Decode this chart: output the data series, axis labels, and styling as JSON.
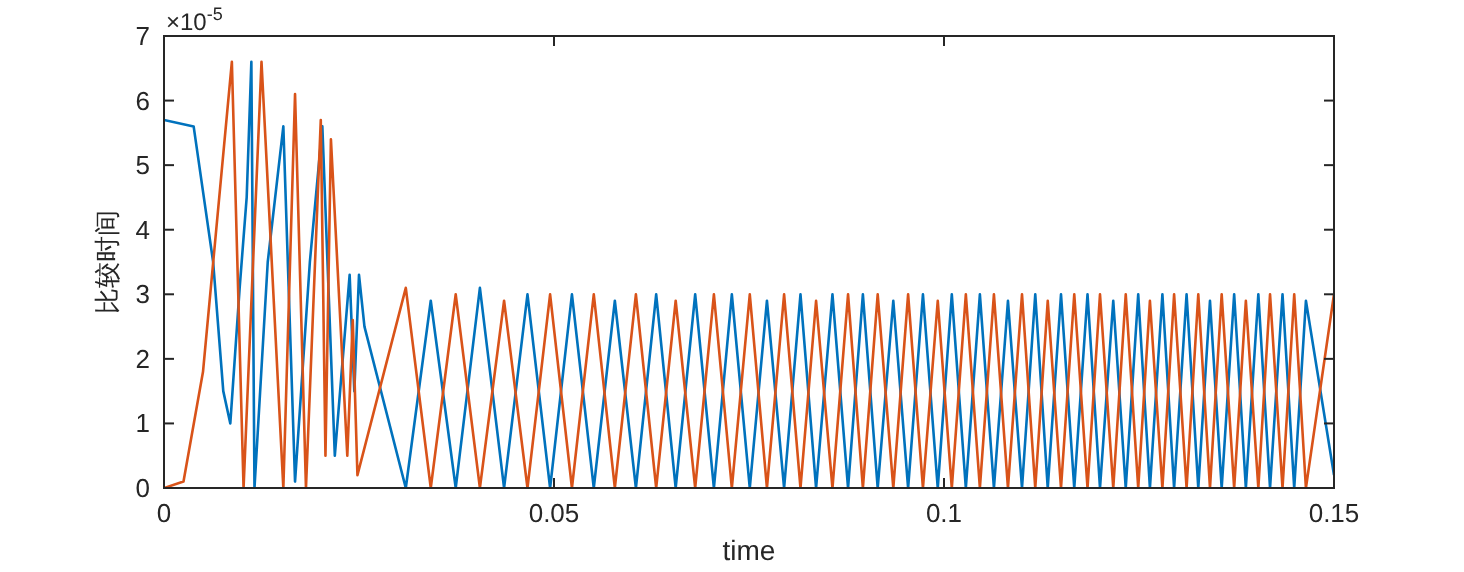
{
  "chart_data": {
    "type": "line",
    "xlabel": "time",
    "ylabel": "比较时间",
    "annotations": [
      "×10$^{-5}$"
    ],
    "xlim": [
      0,
      0.15
    ],
    "xticks": [
      0,
      0.05,
      0.1,
      0.15
    ],
    "ylim": [
      0,
      7
    ],
    "yticks": [
      0,
      1,
      2,
      3,
      4,
      5,
      6,
      7
    ],
    "series": [
      {
        "color": "#0072bd",
        "x": [
          0,
          0.0038,
          0.0063,
          0.0076,
          0.0085,
          0.0097,
          0.0106,
          0.0112,
          0.0116,
          0.0133,
          0.0153,
          0.0168,
          0.0187,
          0.0203,
          0.0219,
          0.0238,
          0.0244,
          0.025,
          0.0257,
          0.031,
          0.0342,
          0.0374,
          0.0405,
          0.0436,
          0.0466,
          0.0495,
          0.0523,
          0.0551,
          0.0578,
          0.0605,
          0.0631,
          0.0656,
          0.0681,
          0.0705,
          0.0728,
          0.0751,
          0.0773,
          0.0795,
          0.0816,
          0.0836,
          0.0857,
          0.0877,
          0.0896,
          0.0915,
          0.0935,
          0.0954,
          0.0973,
          0.0992,
          0.101,
          0.1028,
          0.1046,
          0.1064,
          0.1082,
          0.11,
          0.1117,
          0.1133,
          0.115,
          0.1167,
          0.1184,
          0.12,
          0.1217,
          0.1233,
          0.1249,
          0.1264,
          0.128,
          0.1295,
          0.1311,
          0.1326,
          0.1341,
          0.1356,
          0.1372,
          0.1387,
          0.1403,
          0.1418,
          0.1434,
          0.1449,
          0.1464,
          0.15
        ],
        "values": [
          5.7,
          5.6,
          3.5,
          1.5,
          1.0,
          3.1,
          4.5,
          6.6,
          0,
          3.5,
          5.6,
          0.1,
          3.5,
          5.6,
          0.5,
          3.3,
          1.5,
          3.3,
          2.5,
          0,
          2.9,
          0,
          3.1,
          0,
          3,
          0,
          3,
          0,
          2.9,
          0,
          3,
          0,
          3,
          0,
          3,
          0,
          2.9,
          0,
          3,
          0,
          3,
          0,
          3,
          0,
          2.9,
          0,
          3,
          0,
          3,
          0,
          3,
          0,
          2.9,
          0,
          3,
          0,
          3,
          0,
          3,
          0,
          2.9,
          0,
          3,
          0,
          3,
          0,
          3,
          0,
          2.9,
          0,
          3,
          0,
          3,
          0,
          3,
          0,
          2.9,
          0.2
        ]
      },
      {
        "color": "#d95319",
        "x": [
          0,
          0.0025,
          0.005,
          0.0087,
          0.0102,
          0.0125,
          0.0153,
          0.0168,
          0.0182,
          0.0201,
          0.0207,
          0.0214,
          0.0235,
          0.0242,
          0.0248,
          0.031,
          0.0342,
          0.0374,
          0.0405,
          0.0436,
          0.0466,
          0.0495,
          0.0523,
          0.0551,
          0.0578,
          0.0605,
          0.0631,
          0.0656,
          0.0681,
          0.0705,
          0.0728,
          0.0751,
          0.0773,
          0.0795,
          0.0816,
          0.0836,
          0.0857,
          0.0877,
          0.0896,
          0.0915,
          0.0935,
          0.0954,
          0.0973,
          0.0992,
          0.101,
          0.1028,
          0.1046,
          0.1064,
          0.1082,
          0.11,
          0.1117,
          0.1133,
          0.115,
          0.1167,
          0.1184,
          0.12,
          0.1217,
          0.1233,
          0.1249,
          0.1264,
          0.128,
          0.1295,
          0.1311,
          0.1326,
          0.1341,
          0.1356,
          0.1372,
          0.1387,
          0.1403,
          0.1418,
          0.1434,
          0.1449,
          0.1464,
          0.15
        ],
        "values": [
          0,
          0.1,
          1.8,
          6.6,
          0,
          6.6,
          0,
          6.1,
          0,
          5.7,
          0.5,
          5.4,
          0.5,
          2.6,
          0.2,
          3.1,
          0,
          3,
          0,
          2.9,
          0,
          3,
          0,
          3,
          0,
          3,
          0,
          2.9,
          0,
          3,
          0,
          3,
          0,
          3,
          0,
          2.9,
          0,
          3,
          0,
          3,
          0,
          3,
          0,
          2.9,
          0,
          3,
          0,
          3,
          0,
          3,
          0,
          2.9,
          0,
          3,
          0,
          3,
          0,
          3,
          0,
          2.9,
          0,
          3,
          0,
          3,
          0,
          3,
          0,
          2.9,
          0,
          3,
          0,
          3,
          0,
          3
        ]
      }
    ]
  }
}
